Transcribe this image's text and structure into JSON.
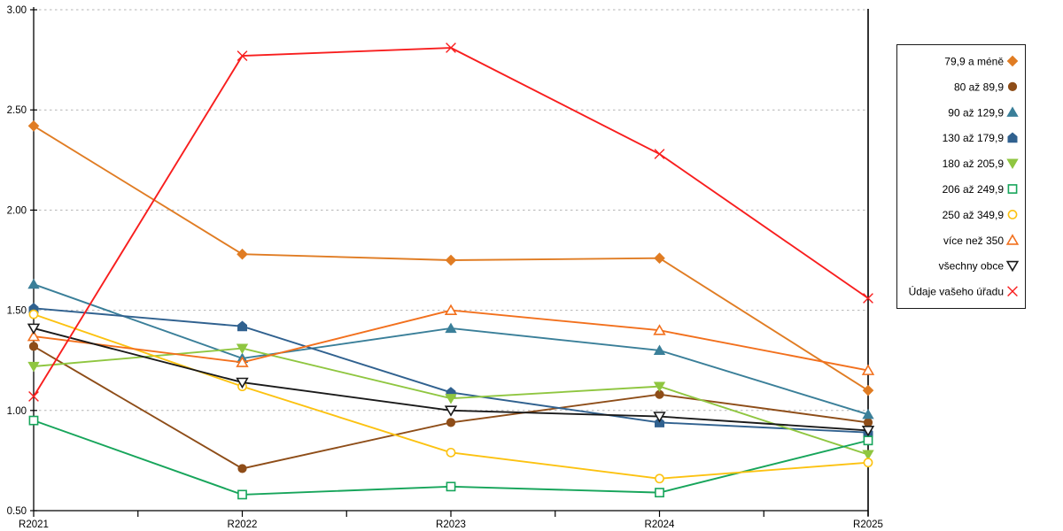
{
  "chart_data": {
    "type": "line",
    "title": "",
    "xlabel": "",
    "ylabel": "",
    "x": [
      "R2021",
      "R2022",
      "R2023",
      "R2024",
      "R2025"
    ],
    "ylim": [
      0.5,
      3.0
    ],
    "yticks": [
      0.5,
      1.0,
      1.5,
      2.0,
      2.5,
      3.0
    ],
    "ytick_labels": [
      "0.50",
      "1.00",
      "1.50",
      "2.00",
      "2.50",
      "3.00"
    ],
    "grid": "horizontal dotted",
    "legend_position": "right",
    "axis_color": "#000000",
    "grid_color": "#b3b3b3",
    "series": [
      {
        "name": "79,9 a méně",
        "color": "#e07c23",
        "marker": "diamond",
        "filled": true,
        "values": [
          2.42,
          1.78,
          1.75,
          1.76,
          1.1
        ]
      },
      {
        "name": "80 až 89,9",
        "color": "#8e4d18",
        "marker": "circle",
        "filled": true,
        "values": [
          1.32,
          0.71,
          0.94,
          1.08,
          0.94
        ]
      },
      {
        "name": "90 až 129,9",
        "color": "#3a7f99",
        "marker": "triangle-up",
        "filled": true,
        "values": [
          1.63,
          1.26,
          1.41,
          1.3,
          0.98
        ]
      },
      {
        "name": "130 až 179,9",
        "color": "#30618f",
        "marker": "pentagon",
        "filled": true,
        "values": [
          1.51,
          1.42,
          1.09,
          0.94,
          0.89
        ]
      },
      {
        "name": "180 až 205,9",
        "color": "#8fc640",
        "marker": "triangle-down",
        "filled": true,
        "values": [
          1.22,
          1.31,
          1.06,
          1.12,
          0.78
        ]
      },
      {
        "name": "206 až 249,9",
        "color": "#17a55b",
        "marker": "square",
        "filled": false,
        "values": [
          0.95,
          0.58,
          0.62,
          0.59,
          0.85
        ]
      },
      {
        "name": "250 až 349,9",
        "color": "#fcc211",
        "marker": "circle",
        "filled": false,
        "values": [
          1.48,
          1.12,
          0.79,
          0.66,
          0.74
        ]
      },
      {
        "name": "více než 350",
        "color": "#f2701d",
        "marker": "triangle-up",
        "filled": false,
        "values": [
          1.37,
          1.24,
          1.5,
          1.4,
          1.2
        ]
      },
      {
        "name": "všechny obce",
        "color": "#1a1a1a",
        "marker": "triangle-down",
        "filled": false,
        "values": [
          1.41,
          1.14,
          1.0,
          0.97,
          0.9
        ]
      },
      {
        "name": "Údaje vašeho úřadu",
        "color": "#f81e1e",
        "marker": "x",
        "filled": false,
        "values": [
          1.07,
          2.77,
          2.81,
          2.28,
          1.56
        ]
      }
    ]
  }
}
